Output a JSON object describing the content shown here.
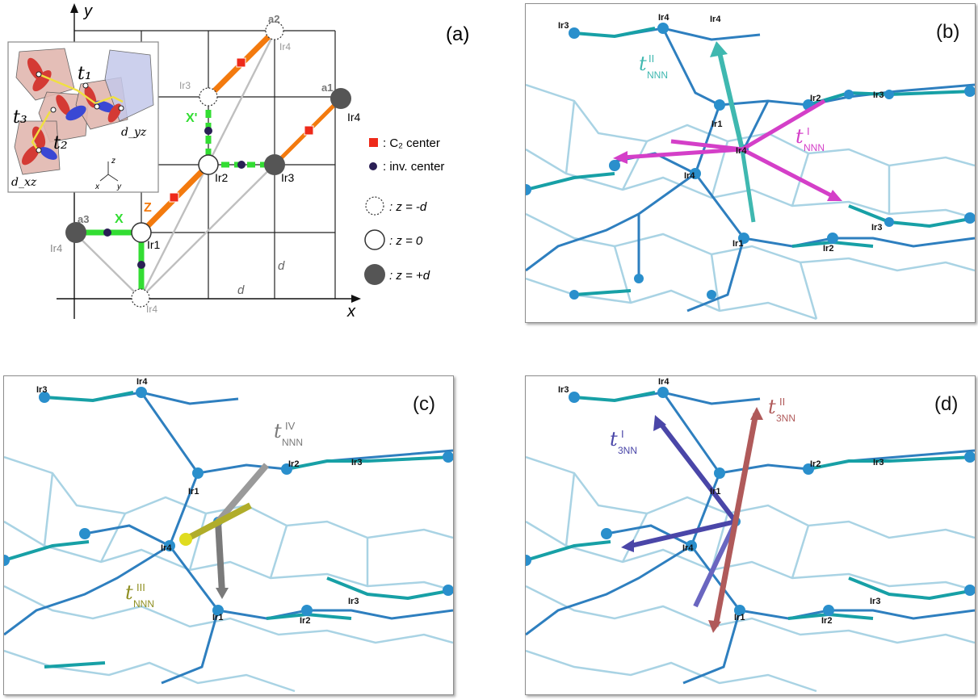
{
  "panel_a": {
    "label": "(a)",
    "axis_x": "x",
    "axis_y": "y",
    "vectors": {
      "a1": "a1",
      "a2": "a2",
      "a3": "a3"
    },
    "sites": {
      "ir1": "Ir1",
      "ir2": "Ir2",
      "ir3": "Ir3",
      "ir4_right": "Ir4",
      "ir3_top": "Ir3",
      "ir4_top": "Ir4",
      "ir4_left": "Ir4",
      "ir4_bottom": "Ir4"
    },
    "bonds": {
      "x": "X",
      "x_prime": "X'",
      "z": "Z"
    },
    "distance": "d",
    "legend": {
      "c2": ": C₂ center",
      "inv": ": inv. center",
      "zneg": ": z = -d",
      "zzero": ": z = 0",
      "zpos": ": z = +d"
    },
    "inset": {
      "t1": "t₁",
      "t2": "t₂",
      "t3": "t₃",
      "dxz": "d_xz",
      "dyz": "d_yz",
      "ax_x": "x",
      "ax_y": "y",
      "ax_z": "z"
    },
    "colors": {
      "x_bond": "#33dd33",
      "z_bond": "#f37a0e",
      "c2": "#ee2a1a",
      "inv": "#2a1f55"
    }
  },
  "panel_b": {
    "label": "(b)",
    "t_nnn_II": "NNN",
    "t_nnn_I": "NNN",
    "sup_II": "II",
    "sup_I": "I",
    "colors": {
      "tII": "#3fb8b0",
      "tI": "#d43fc8"
    }
  },
  "panel_c": {
    "label": "(c)",
    "t_nnn_IV": "NNN",
    "t_nnn_III": "NNN",
    "sup_IV": "IV",
    "sup_III": "III",
    "colors": {
      "tIV": "#7a7a7a",
      "tIII": "#8f8f22"
    }
  },
  "panel_d": {
    "label": "(d)",
    "t_3nn_I": "3NN",
    "t_3nn_II": "3NN",
    "sup_I": "I",
    "sup_II": "II",
    "colors": {
      "tI": "#4a46a8",
      "tII": "#b05a5a"
    }
  },
  "lattice": {
    "top_labels": [
      "Ir3",
      "Ir4",
      "Ir4",
      "Ir4"
    ],
    "mid_labels": [
      "Ir1",
      "Ir2",
      "Ir3",
      "Ir1",
      "Ir2",
      "Ir3"
    ],
    "low_labels": [
      "Ir4",
      "Ir1",
      "Ir2",
      "Ir3",
      "Ir4"
    ]
  }
}
